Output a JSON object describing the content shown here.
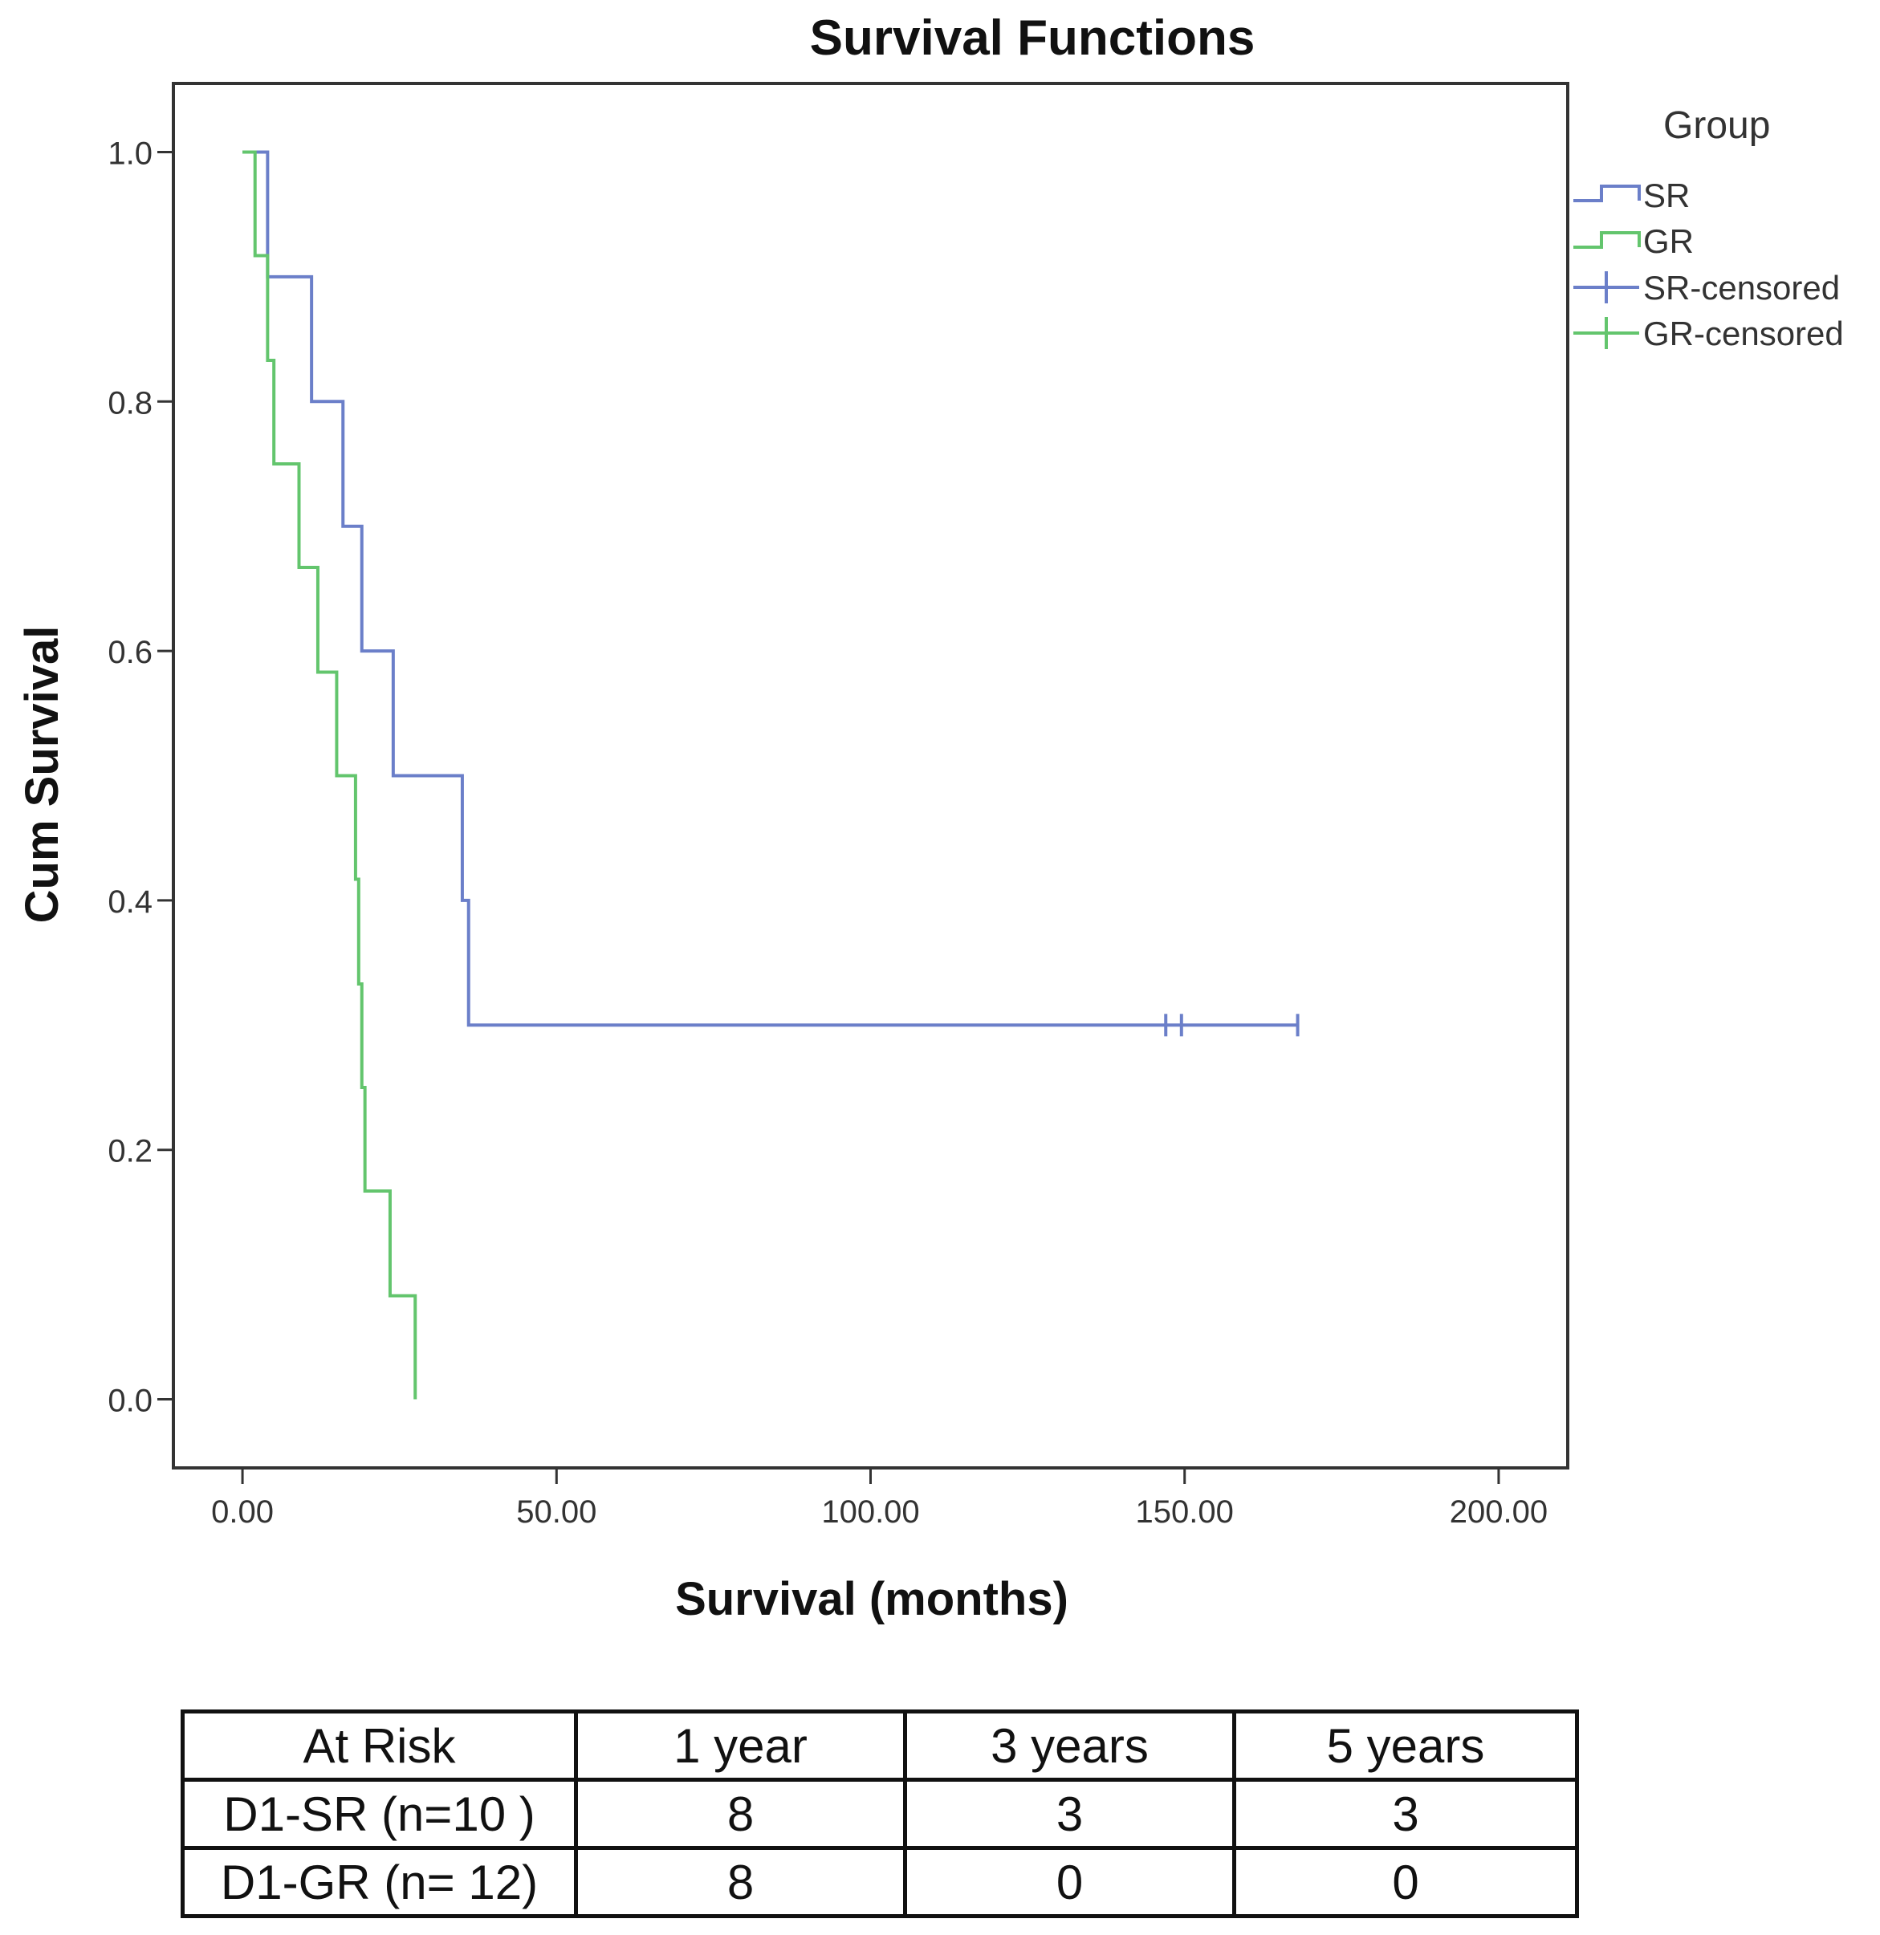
{
  "chart_data": {
    "type": "line",
    "subtype": "kaplan-meier",
    "title": "Survival Functions",
    "xlabel": "Survival (months)",
    "ylabel": "Cum Survival",
    "xlim": [
      -11,
      211
    ],
    "ylim": [
      -0.055,
      1.055
    ],
    "xticks": [
      0,
      50,
      100,
      150,
      200
    ],
    "xtick_labels": [
      "0.00",
      "50.00",
      "100.00",
      "150.00",
      "200.00"
    ],
    "yticks": [
      0,
      0.2,
      0.4,
      0.6,
      0.8,
      1.0
    ],
    "ytick_labels": [
      "0.0",
      "0.2",
      "0.4",
      "0.6",
      "0.8",
      "1.0"
    ],
    "legend_title": "Group",
    "legend_position": "right",
    "series": [
      {
        "name": "SR",
        "color": "#6b7fc9",
        "steps": [
          [
            0,
            1.0
          ],
          [
            4,
            0.9
          ],
          [
            11,
            0.8
          ],
          [
            16,
            0.7
          ],
          [
            19,
            0.6
          ],
          [
            24,
            0.5
          ],
          [
            35,
            0.4
          ],
          [
            36,
            0.3
          ]
        ],
        "end_x": 168,
        "censored": [
          147,
          149.5,
          168
        ]
      },
      {
        "name": "GR",
        "color": "#63c56d",
        "steps": [
          [
            0,
            1.0
          ],
          [
            2,
            0.917
          ],
          [
            4,
            0.833
          ],
          [
            5,
            0.75
          ],
          [
            9,
            0.667
          ],
          [
            12,
            0.583
          ],
          [
            15,
            0.5
          ],
          [
            18,
            0.417
          ],
          [
            18.5,
            0.333
          ],
          [
            19,
            0.25
          ],
          [
            19.5,
            0.167
          ],
          [
            23.5,
            0.083
          ],
          [
            27.5,
            0.0
          ]
        ],
        "end_x": 27.5,
        "censored": []
      }
    ],
    "legend_entries": [
      "SR",
      "GR",
      "SR-censored",
      "GR-censored"
    ]
  },
  "risk_table": {
    "headers": [
      "At Risk",
      "1 year",
      "3 years",
      "5 years"
    ],
    "rows": [
      {
        "label": "D1-SR (n=10 )",
        "values": [
          "8",
          "3",
          "3"
        ]
      },
      {
        "label": "D1-GR (n= 12)",
        "values": [
          "8",
          "0",
          "0"
        ]
      }
    ]
  }
}
